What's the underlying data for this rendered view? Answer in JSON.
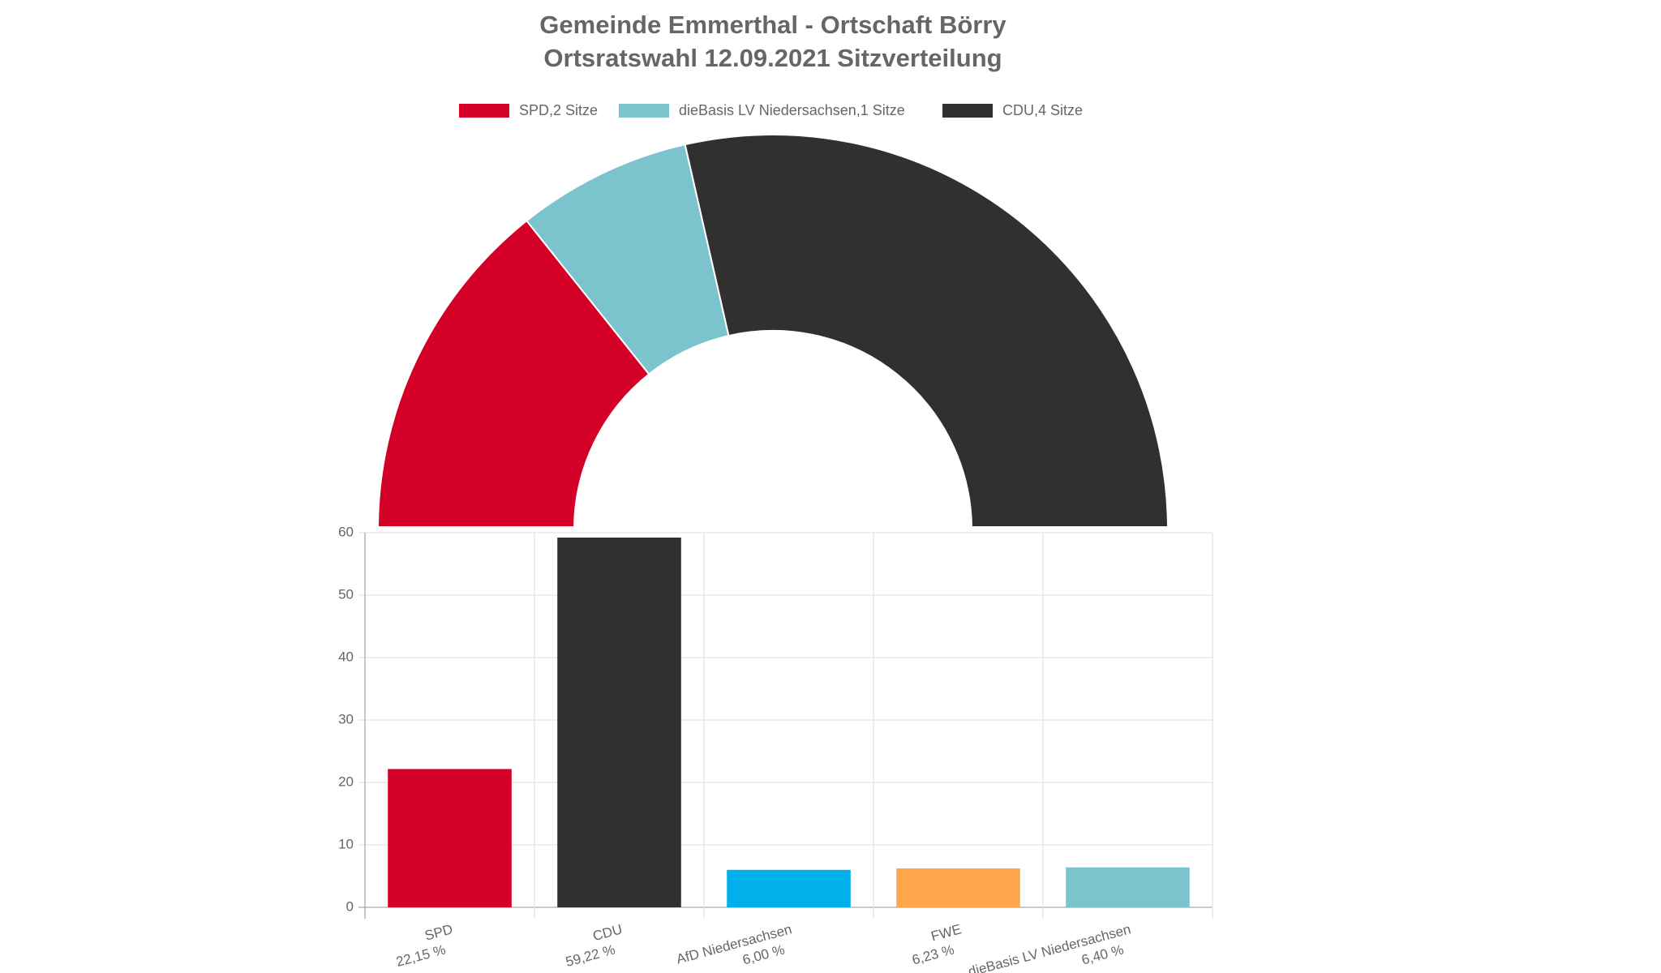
{
  "chart_data": [
    {
      "type": "half-doughnut",
      "title": [
        "Gemeinde Emmerthal - Ortschaft Börry",
        "Ortsratswahl 12.09.2021 Sitzverteilung"
      ],
      "categories": [
        "SPD,2 Sitze",
        "dieBasis LV Niedersachsen,1 Sitze",
        "CDU,4 Sitze"
      ],
      "values": [
        2,
        1,
        4
      ],
      "colors": [
        "#d50027",
        "#7cc4cd",
        "#32302f"
      ],
      "legend": "top"
    },
    {
      "type": "bar",
      "categories": [
        "SPD",
        "CDU",
        "AfD Niedersachsen",
        "FWE",
        "dieBasis LV Niedersachsen"
      ],
      "values": [
        22.15,
        59.22,
        6.0,
        6.23,
        6.4
      ],
      "value_labels": [
        "22,15 %",
        "59,22 %",
        "6,00 %",
        "6,23 %",
        "6,40 %"
      ],
      "colors": [
        "#d50027",
        "#32302f",
        "#00b0ea",
        "#ffa64d",
        "#7cc4cd"
      ],
      "ylim": [
        0,
        60
      ],
      "yticks": [
        0,
        10,
        20,
        30,
        40,
        50,
        60
      ],
      "grid": true
    }
  ]
}
